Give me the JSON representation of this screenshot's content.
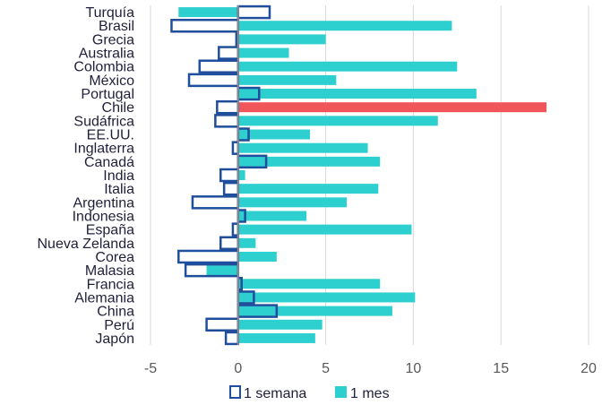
{
  "chart_data": {
    "type": "bar",
    "orientation": "horizontal",
    "categories": [
      "Turquía",
      "Brasil",
      "Grecia",
      "Australia",
      "Colombia",
      "México",
      "Portugal",
      "Chile",
      "Sudáfrica",
      "EE.UU.",
      "Inglaterra",
      "Canadá",
      "India",
      "Italia",
      "Argentina",
      "Indonesia",
      "España",
      "Nueva Zelanda",
      "Corea",
      "Malasia",
      "Francia",
      "Alemania",
      "China",
      "Perú",
      "Japón"
    ],
    "series": [
      {
        "name": "1 semana",
        "color": "#1f4e9c",
        "style": "outline",
        "values": [
          1.8,
          -3.8,
          -0.1,
          -1.1,
          -2.2,
          -2.8,
          1.2,
          -1.2,
          -1.3,
          0.6,
          -0.3,
          1.6,
          -1.0,
          -0.8,
          -2.6,
          0.4,
          -0.3,
          -1.0,
          -3.4,
          -3.0,
          0.2,
          0.9,
          2.2,
          -1.8,
          -0.7
        ]
      },
      {
        "name": "1 mes",
        "color": "#2dcfcf",
        "highlight_color": "#f0555a",
        "highlight_category": "Chile",
        "values": [
          -3.4,
          12.2,
          5.0,
          2.9,
          12.5,
          5.6,
          13.6,
          17.6,
          11.4,
          4.1,
          7.4,
          8.1,
          0.4,
          8.0,
          6.2,
          3.9,
          9.9,
          1.0,
          2.2,
          -1.8,
          8.1,
          10.1,
          8.8,
          4.8,
          4.4
        ]
      }
    ],
    "xlim": [
      -5,
      20
    ],
    "xticks": [
      -5,
      0,
      5,
      10,
      15,
      20
    ],
    "grid": true,
    "legend_position": "bottom"
  }
}
